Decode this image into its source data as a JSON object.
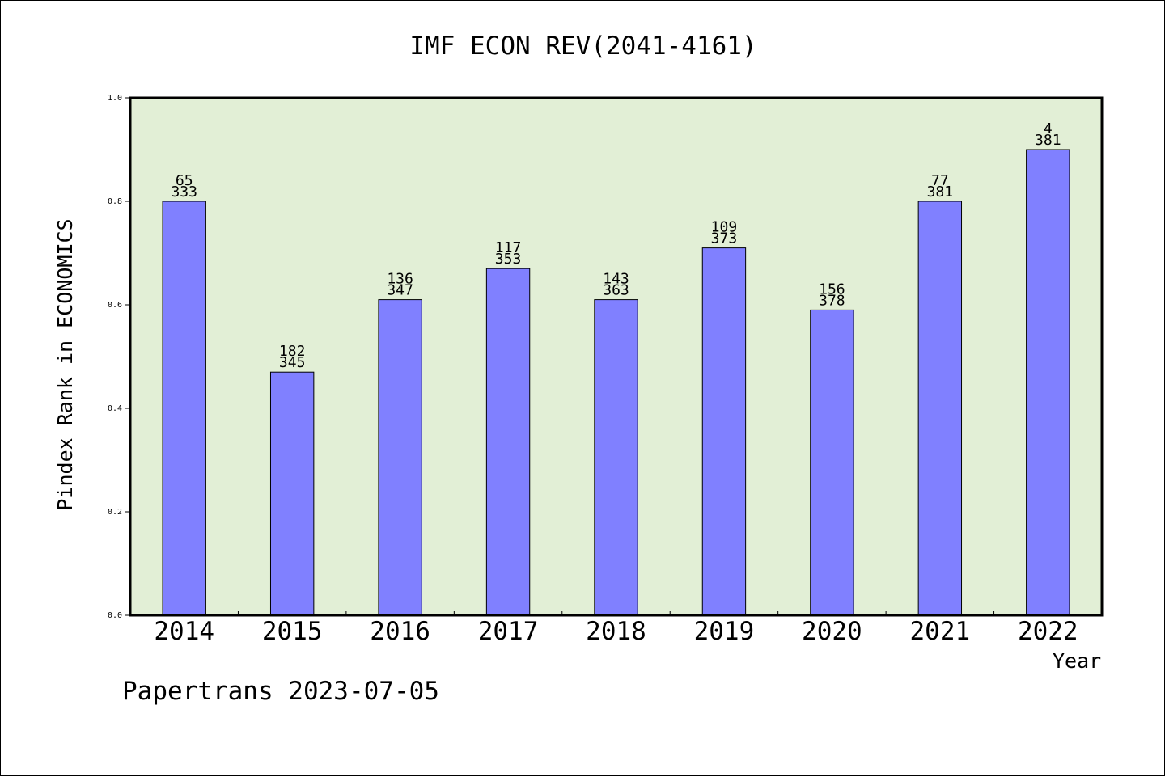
{
  "chart_data": {
    "type": "bar",
    "title": "IMF ECON REV(2041-4161)",
    "xlabel": "Year",
    "ylabel": "Pindex Rank in ECONOMICS",
    "ylim": [
      0,
      1.0
    ],
    "yticks": [
      "0.0",
      "0.2",
      "0.4",
      "0.6",
      "0.8",
      "1.0"
    ],
    "grid": false,
    "categories": [
      "2014",
      "2015",
      "2016",
      "2017",
      "2018",
      "2019",
      "2020",
      "2021",
      "2022"
    ],
    "values": [
      0.8,
      0.47,
      0.61,
      0.67,
      0.61,
      0.71,
      0.59,
      0.8,
      0.9
    ],
    "label_top": [
      "65",
      "182",
      "136",
      "117",
      "143",
      "109",
      "156",
      "77",
      "4"
    ],
    "label_bottom": [
      "333",
      "345",
      "347",
      "353",
      "363",
      "373",
      "378",
      "381",
      "381"
    ],
    "colors": {
      "bar": "#8080ff",
      "plot_background": "#e2efd6",
      "axis": "#000000"
    }
  },
  "footer": {
    "note": "Papertrans 2023-07-05"
  }
}
